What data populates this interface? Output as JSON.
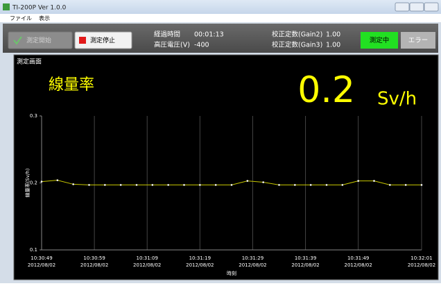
{
  "window": {
    "title": "TI-200P Ver 1.0.0"
  },
  "menu": [
    "ファイル",
    "表示"
  ],
  "toolbar": {
    "start_button": "測定開始",
    "stop_button": "測定停止",
    "elapsed_label": "経過時間",
    "elapsed_value": "00:01:13",
    "voltage_label": "高圧電圧(V)",
    "voltage_value": -400,
    "gain2_label": "校正定数(Gain2)",
    "gain2_value": "1.00",
    "gain3_label": "校正定数(Gain3)",
    "gain3_value": "1.00",
    "status_measuring": "測定中",
    "status_error": "エラー"
  },
  "panel": {
    "title": "測定画面",
    "readout_label": "線量率",
    "readout_value": 0.2,
    "readout_unit": "Sv/h"
  },
  "chart_data": {
    "type": "line",
    "x_label": "時刻",
    "y_label": "線量率(Sv/h)",
    "x": [
      0,
      3,
      6,
      9,
      12,
      15,
      18,
      21,
      24,
      27,
      30,
      33,
      36,
      39,
      42,
      45,
      48,
      51,
      54,
      57,
      60,
      63,
      66,
      69,
      72
    ],
    "series": [
      {
        "color": "#c8c800",
        "values": [
          0.202,
          0.204,
          0.198,
          0.197,
          0.197,
          0.197,
          0.197,
          0.197,
          0.197,
          0.197,
          0.197,
          0.197,
          0.197,
          0.203,
          0.201,
          0.197,
          0.197,
          0.197,
          0.197,
          0.197,
          0.203,
          0.203,
          0.197,
          0.197,
          0.197
        ]
      }
    ],
    "xlim": [
      0,
      72
    ],
    "xticks": [
      {
        "value": 0,
        "label": "10:30:49"
      },
      {
        "value": 10,
        "label": "10:30:59"
      },
      {
        "value": 20,
        "label": "10:31:09"
      },
      {
        "value": 30,
        "label": "10:31:19"
      },
      {
        "value": 40,
        "label": "10:31:29"
      },
      {
        "value": 50,
        "label": "10:31:39"
      },
      {
        "value": 60,
        "label": "10:31:49"
      },
      {
        "value": 72,
        "label": "10:32:01"
      }
    ],
    "xtick_dates": [
      "2012/08/02",
      "2012/08/02",
      "2012/08/02",
      "2012/08/02",
      "2012/08/02",
      "2012/08/02",
      "2012/08/02",
      "2012/08/02"
    ],
    "ylim": [
      0.1,
      0.3
    ],
    "yticks": [
      0.1,
      0.2,
      0.3
    ],
    "grid": true
  }
}
